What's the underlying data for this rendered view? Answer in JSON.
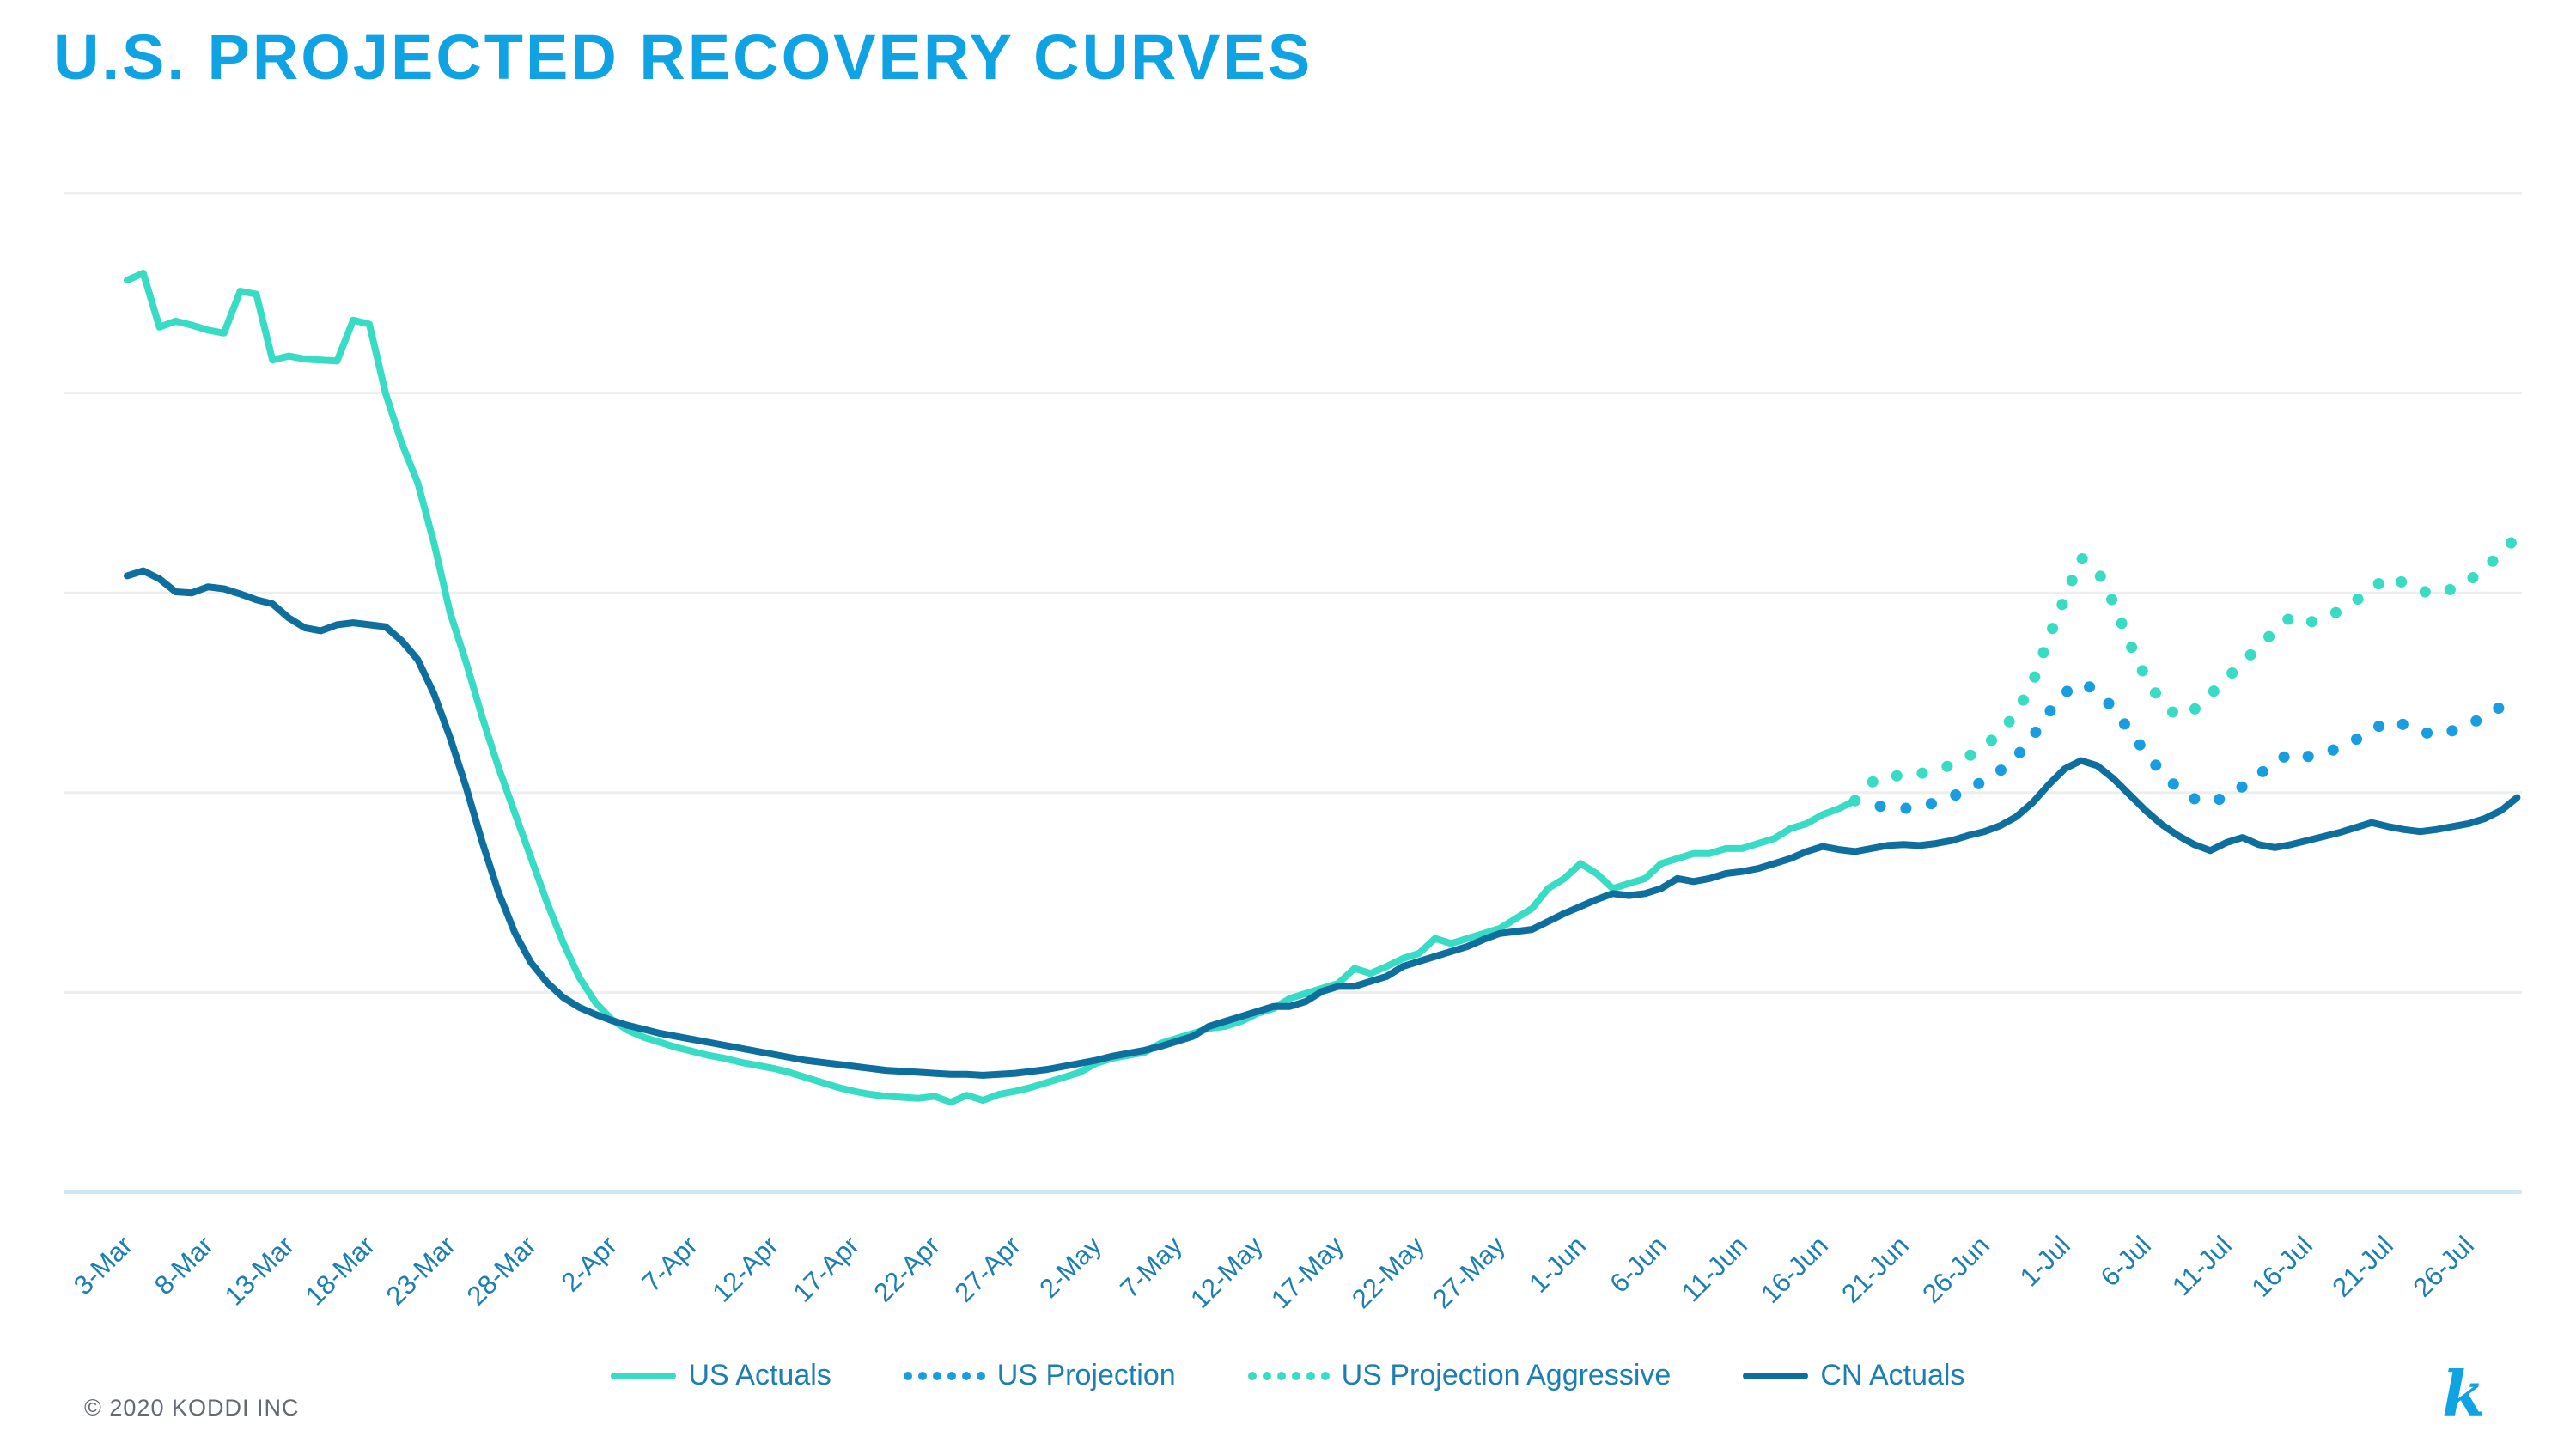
{
  "title": "U.S. PROJECTED RECOVERY CURVES",
  "footer": {
    "copyright": "© 2020 KODDI INC",
    "logo": "k"
  },
  "colors": {
    "title": "#10A3E3",
    "axis_text": "#1C7EB1",
    "legend_text": "#1C7EB1",
    "gridline": "#EEEEEE",
    "axis_line": "#CFE8F6",
    "copyright": "#636A73",
    "us_actuals": "#38DCC4",
    "us_projection": "#189EE0",
    "us_projection_aggressive": "#38DCC4",
    "cn_actuals": "#0E6F9E"
  },
  "chart_data": {
    "type": "line",
    "title": "U.S. PROJECTED RECOVERY CURVES",
    "xlabel": "",
    "ylabel": "",
    "grid": "horizontal",
    "legend_position": "bottom",
    "y_axis_labels_visible": false,
    "ylim": [
      0,
      100
    ],
    "x_unit": "day",
    "x_start_date": "3-Mar",
    "x_tick_every_days": 5,
    "x_tick_labels": [
      "3-Mar",
      "8-Mar",
      "13-Mar",
      "18-Mar",
      "23-Mar",
      "28-Mar",
      "2-Apr",
      "7-Apr",
      "12-Apr",
      "17-Apr",
      "22-Apr",
      "27-Apr",
      "2-May",
      "7-May",
      "12-May",
      "17-May",
      "22-May",
      "27-May",
      "1-Jun",
      "6-Jun",
      "11-Jun",
      "16-Jun",
      "21-Jun",
      "26-Jun",
      "1-Jul",
      "6-Jul",
      "11-Jul",
      "16-Jul",
      "21-Jul",
      "26-Jul"
    ],
    "series": [
      {
        "name": "US Actuals",
        "style": "solid",
        "color": "#38DCC4",
        "start_day": 0,
        "values": [
          91.3,
          92,
          86.6,
          87.2,
          86.8,
          86.3,
          86,
          90.2,
          89.9,
          83.3,
          83.7,
          83.4,
          83.3,
          83.2,
          87.3,
          86.9,
          80,
          75,
          71,
          65,
          58,
          53,
          47.5,
          42.5,
          38,
          33.5,
          29,
          25,
          21.5,
          19,
          17.3,
          16.2,
          15.5,
          15,
          14.5,
          14.1,
          13.7,
          13.4,
          13,
          12.7,
          12.4,
          12,
          11.5,
          11,
          10.5,
          10.1,
          9.8,
          9.6,
          9.5,
          9.4,
          9.6,
          9,
          9.7,
          9.2,
          9.8,
          10.1,
          10.5,
          11,
          11.5,
          12,
          12.9,
          13.4,
          13.7,
          14,
          14.9,
          15.4,
          15.9,
          16.4,
          16.6,
          17.1,
          17.9,
          18.4,
          19.4,
          19.9,
          20.4,
          20.9,
          22.4,
          21.9,
          22.6,
          23.4,
          23.9,
          25.4,
          24.9,
          25.4,
          25.9,
          26.4,
          27.4,
          28.4,
          30.4,
          31.4,
          32.9,
          31.9,
          30.4,
          30.9,
          31.4,
          32.9,
          33.4,
          33.9,
          33.9,
          34.4,
          34.4,
          34.9,
          35.4,
          36.4,
          36.9,
          37.8,
          38.4,
          39.2
        ]
      },
      {
        "name": "US Projection",
        "style": "dotted",
        "color": "#189EE0",
        "start_day": 107,
        "values": [
          39.2,
          38.8,
          38.5,
          38.4,
          38.6,
          39,
          39.6,
          40.3,
          41.2,
          42.2,
          43.6,
          45.6,
          48,
          50,
          51,
          50.2,
          48.4,
          46.2,
          44,
          42,
          40.4,
          39.4,
          39,
          39.6,
          40.6,
          41.8,
          43,
          44,
          43.6,
          43.9,
          44.5,
          45.3,
          46.2,
          47.2,
          46.8,
          46.1,
          45.8,
          46.2,
          46.8,
          47.6,
          48.6,
          49.8
        ]
      },
      {
        "name": "US Projection Aggressive",
        "style": "dotted",
        "color": "#38DCC4",
        "start_day": 107,
        "values": [
          39.2,
          41,
          41.8,
          41.6,
          41.9,
          42.2,
          42.8,
          43.6,
          44.6,
          46,
          48,
          51,
          55.5,
          59.5,
          63.5,
          62.3,
          59,
          55,
          51.5,
          49,
          47.6,
          48.3,
          49.8,
          51.4,
          53,
          54.6,
          56.2,
          57.6,
          57,
          57.4,
          58.2,
          59.2,
          60.4,
          61.6,
          61,
          60.2,
          59.9,
          60.4,
          61.2,
          62.4,
          64,
          65.6
        ]
      },
      {
        "name": "CN Actuals",
        "style": "solid",
        "color": "#0E6F9E",
        "start_day": 0,
        "values": [
          61.7,
          62.2,
          61.4,
          60.1,
          60,
          60.6,
          60.4,
          59.9,
          59.3,
          58.9,
          57.5,
          56.5,
          56.2,
          56.8,
          57,
          56.8,
          56.6,
          55.2,
          53.3,
          49.9,
          45.5,
          40.5,
          35,
          30,
          26,
          23,
          21,
          19.5,
          18.5,
          17.8,
          17.2,
          16.7,
          16.3,
          15.9,
          15.6,
          15.3,
          15,
          14.7,
          14.4,
          14.1,
          13.8,
          13.5,
          13.2,
          13,
          12.8,
          12.6,
          12.4,
          12.2,
          12.1,
          12,
          11.9,
          11.8,
          11.8,
          11.7,
          11.8,
          11.9,
          12.1,
          12.3,
          12.6,
          12.9,
          13.2,
          13.6,
          13.9,
          14.2,
          14.6,
          15.1,
          15.6,
          16.6,
          17.1,
          17.6,
          18.1,
          18.6,
          18.6,
          19.1,
          20.1,
          20.6,
          20.6,
          21.1,
          21.6,
          22.6,
          23.1,
          23.6,
          24.1,
          24.6,
          25.3,
          25.9,
          26.1,
          26.3,
          27.1,
          27.9,
          28.6,
          29.3,
          29.9,
          29.7,
          29.9,
          30.4,
          31.4,
          31.1,
          31.4,
          31.9,
          32.1,
          32.4,
          32.9,
          33.4,
          34.1,
          34.6,
          34.3,
          34.1,
          34.4,
          34.7,
          34.8,
          34.7,
          34.9,
          35.2,
          35.7,
          36.1,
          36.7,
          37.6,
          39,
          40.8,
          42.4,
          43.2,
          42.7,
          41.4,
          39.8,
          38.2,
          36.8,
          35.7,
          34.8,
          34.2,
          35,
          35.5,
          34.8,
          34.5,
          34.8,
          35.2,
          35.6,
          36,
          36.5,
          37,
          36.6,
          36.3,
          36.1,
          36.3,
          36.6,
          36.9,
          37.4,
          38.2,
          39.5
        ]
      }
    ]
  }
}
